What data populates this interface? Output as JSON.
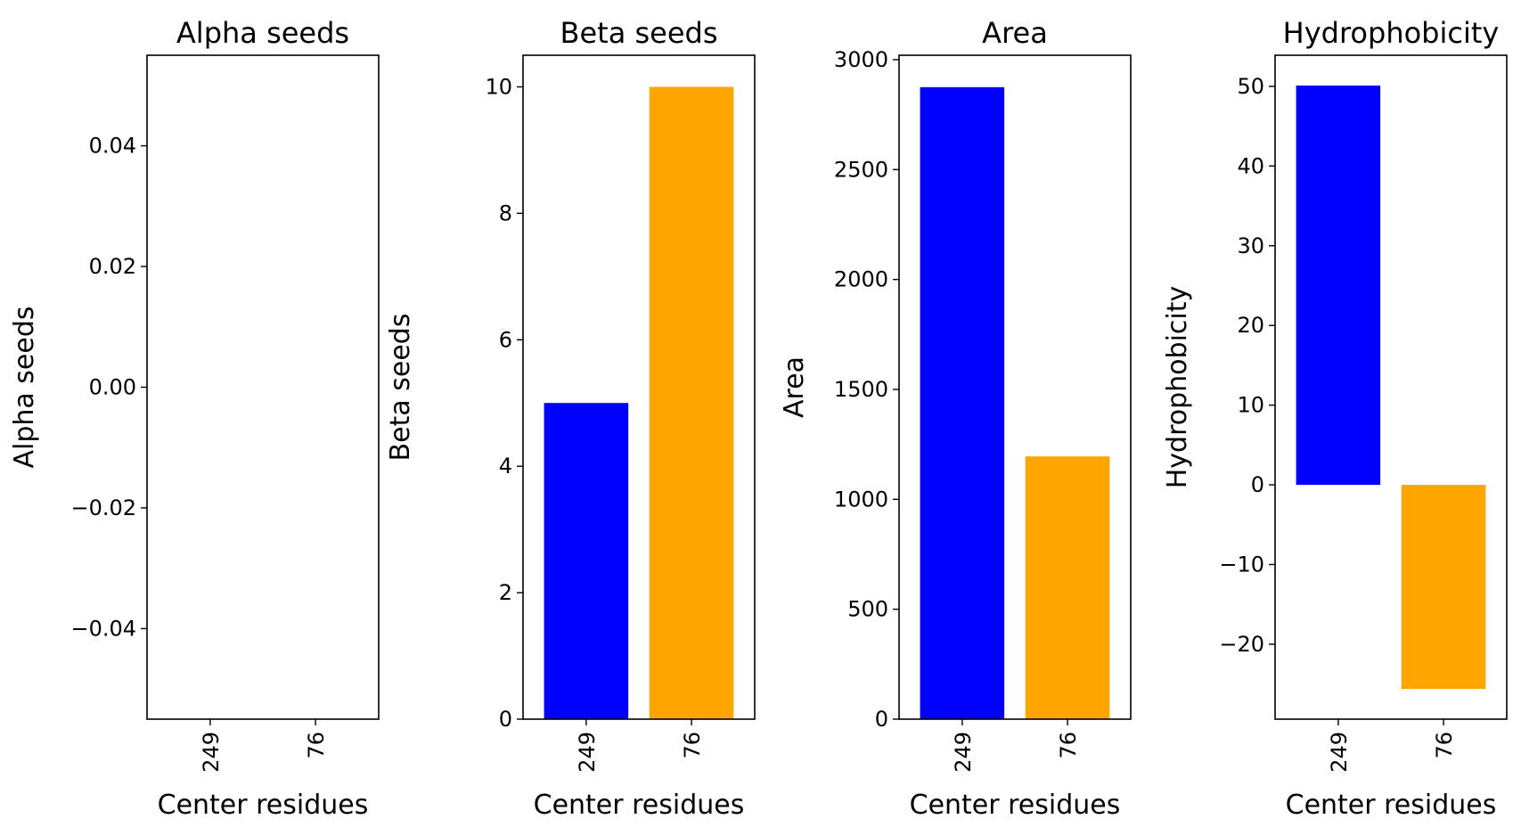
{
  "chart_data": [
    {
      "type": "bar",
      "title": "Alpha seeds",
      "xlabel": "Center residues",
      "ylabel": "Alpha seeds",
      "categories": [
        "249",
        "76"
      ],
      "values": [
        0,
        0
      ],
      "colors": [
        "#0000ff",
        "#ffa500"
      ],
      "ylim": [
        -0.055,
        0.055
      ],
      "yticks": [
        -0.04,
        -0.02,
        0.0,
        0.02,
        0.04
      ],
      "ytick_labels": [
        "−0.04",
        "−0.02",
        "0.00",
        "0.02",
        "0.04"
      ],
      "grid": false
    },
    {
      "type": "bar",
      "title": "Beta seeds",
      "xlabel": "Center residues",
      "ylabel": "Beta seeds",
      "categories": [
        "249",
        "76"
      ],
      "values": [
        5,
        10
      ],
      "colors": [
        "#0000ff",
        "#ffa500"
      ],
      "ylim": [
        0,
        10.5
      ],
      "yticks": [
        0,
        2,
        4,
        6,
        8,
        10
      ],
      "ytick_labels": [
        "0",
        "2",
        "4",
        "6",
        "8",
        "10"
      ],
      "grid": false
    },
    {
      "type": "bar",
      "title": "Area",
      "xlabel": "Center residues",
      "ylabel": "Area",
      "categories": [
        "249",
        "76"
      ],
      "values": [
        2875,
        1195
      ],
      "colors": [
        "#0000ff",
        "#ffa500"
      ],
      "ylim": [
        0,
        3020
      ],
      "yticks": [
        0,
        500,
        1000,
        1500,
        2000,
        2500,
        3000
      ],
      "ytick_labels": [
        "0",
        "500",
        "1000",
        "1500",
        "2000",
        "2500",
        "3000"
      ],
      "grid": false
    },
    {
      "type": "bar",
      "title": "Hydrophobicity",
      "xlabel": "Center residues",
      "ylabel": "Hydrophobicity",
      "categories": [
        "249",
        "76"
      ],
      "values": [
        50.1,
        -25.6
      ],
      "colors": [
        "#0000ff",
        "#ffa500"
      ],
      "ylim": [
        -29.4,
        53.9
      ],
      "yticks": [
        -20,
        -10,
        0,
        10,
        20,
        30,
        40,
        50
      ],
      "ytick_labels": [
        "−20",
        "−10",
        "0",
        "10",
        "20",
        "30",
        "40",
        "50"
      ],
      "grid": false
    }
  ]
}
